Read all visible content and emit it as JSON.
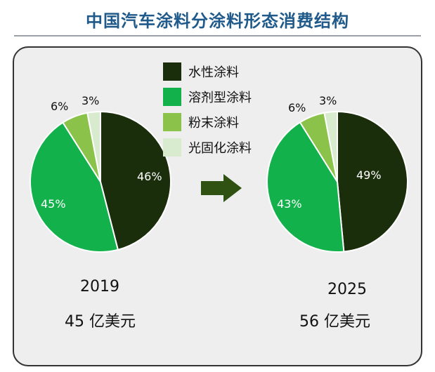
{
  "title": "中国汽车涂料分涂料形态消费结构",
  "colors": {
    "water": "#1b2e0c",
    "solvent": "#12b14c",
    "powder": "#8bc34a",
    "uv": "#d8ebcf",
    "title": "#1f5a8a",
    "arrow": "#2f5212"
  },
  "chart_data": [
    {
      "type": "pie",
      "year": "2019",
      "market_size": "45 亿美元",
      "categories": [
        "水性涂料",
        "溶剂型涂料",
        "粉末涂料",
        "光固化涂料"
      ],
      "values": [
        46,
        45,
        6,
        3
      ],
      "labels": [
        "46%",
        "45%",
        "6%",
        "3%"
      ]
    },
    {
      "type": "pie",
      "year": "2025",
      "market_size": "56 亿美元",
      "categories": [
        "水性涂料",
        "溶剂型涂料",
        "粉末涂料",
        "光固化涂料"
      ],
      "values": [
        49,
        43,
        6,
        3
      ],
      "labels": [
        "49%",
        "43%",
        "6%",
        "3%"
      ]
    }
  ],
  "legend": [
    {
      "label": "水性涂料",
      "color_key": "water"
    },
    {
      "label": "溶剂型涂料",
      "color_key": "solvent"
    },
    {
      "label": "粉末涂料",
      "color_key": "powder"
    },
    {
      "label": "光固化涂料",
      "color_key": "uv"
    }
  ],
  "arrow_icon": "right-arrow-icon"
}
